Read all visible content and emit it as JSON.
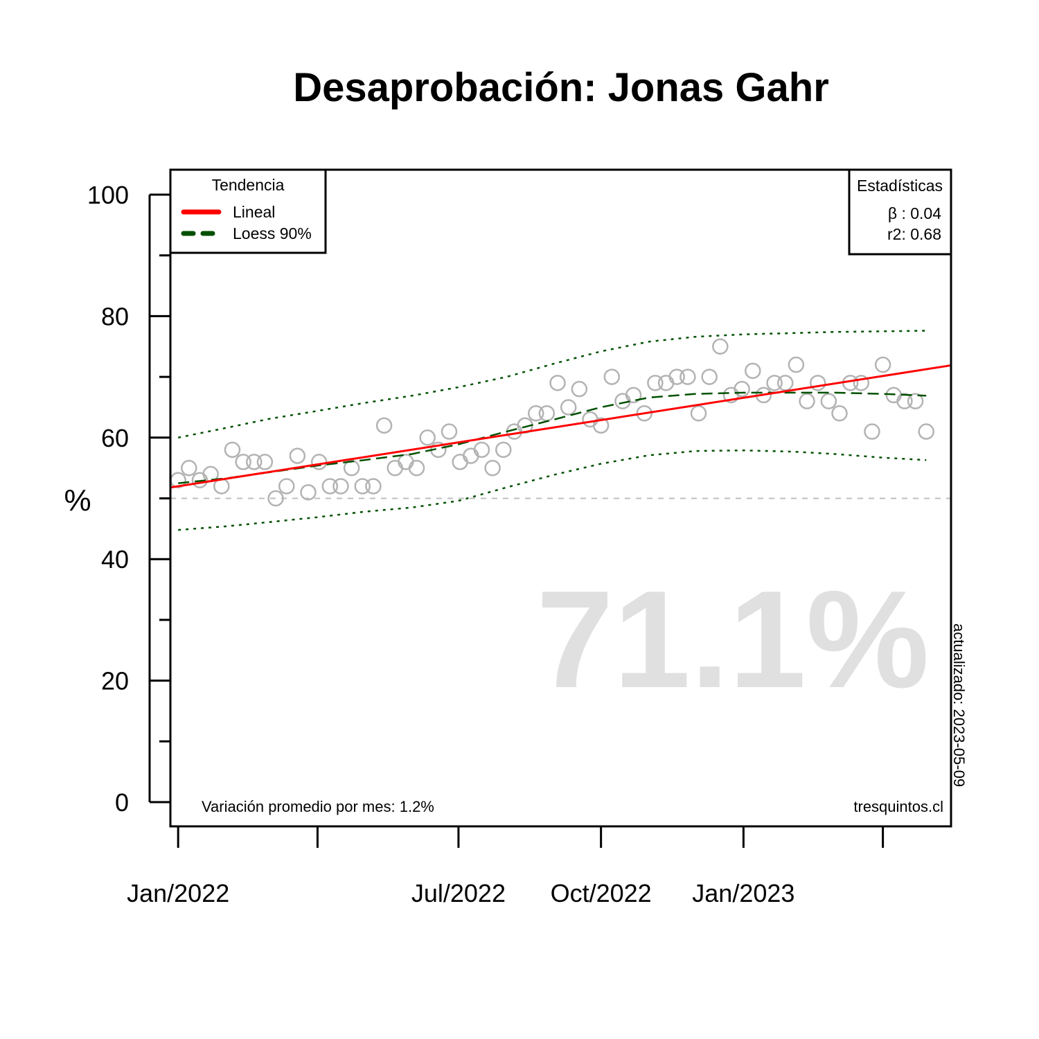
{
  "chart_data": {
    "type": "scatter",
    "title": "Desaprobación: Jonas Gahr",
    "ylabel": "%",
    "xlabel": "",
    "ylim": [
      0,
      100
    ],
    "y_ticks": [
      0,
      20,
      40,
      60,
      80,
      100
    ],
    "y_minor_ticks": [
      10,
      30,
      50,
      70,
      90
    ],
    "x_range": [
      "2021-12-27",
      "2023-05-15"
    ],
    "x_ticks": [
      {
        "date": "2022-01-01",
        "label": "Jan/2022"
      },
      {
        "date": "2022-04-01",
        "label": ""
      },
      {
        "date": "2022-07-01",
        "label": "Jul/2022"
      },
      {
        "date": "2022-10-01",
        "label": "Oct/2022"
      },
      {
        "date": "2023-01-01",
        "label": "Jan/2023"
      },
      {
        "date": "2023-04-01",
        "label": ""
      }
    ],
    "reference_line": 50,
    "colors": {
      "points": "#b3b3b3",
      "linear": "#ff0000",
      "loess": "#005000",
      "reference": "#bebebe",
      "big_value": "#e0e0e0"
    },
    "series": [
      {
        "name": "points",
        "points": [
          {
            "x": "2022-01-01",
            "y": 53
          },
          {
            "x": "2022-01-08",
            "y": 55
          },
          {
            "x": "2022-01-15",
            "y": 53
          },
          {
            "x": "2022-01-22",
            "y": 54
          },
          {
            "x": "2022-01-29",
            "y": 52
          },
          {
            "x": "2022-02-05",
            "y": 58
          },
          {
            "x": "2022-02-12",
            "y": 56
          },
          {
            "x": "2022-02-19",
            "y": 56
          },
          {
            "x": "2022-02-26",
            "y": 56
          },
          {
            "x": "2022-03-05",
            "y": 50
          },
          {
            "x": "2022-03-12",
            "y": 52
          },
          {
            "x": "2022-03-19",
            "y": 57
          },
          {
            "x": "2022-03-26",
            "y": 51
          },
          {
            "x": "2022-04-02",
            "y": 56
          },
          {
            "x": "2022-04-09",
            "y": 52
          },
          {
            "x": "2022-04-16",
            "y": 52
          },
          {
            "x": "2022-04-23",
            "y": 55
          },
          {
            "x": "2022-04-30",
            "y": 52
          },
          {
            "x": "2022-05-07",
            "y": 52
          },
          {
            "x": "2022-05-14",
            "y": 62
          },
          {
            "x": "2022-05-21",
            "y": 55
          },
          {
            "x": "2022-05-28",
            "y": 56
          },
          {
            "x": "2022-06-04",
            "y": 55
          },
          {
            "x": "2022-06-11",
            "y": 60
          },
          {
            "x": "2022-06-18",
            "y": 58
          },
          {
            "x": "2022-06-25",
            "y": 61
          },
          {
            "x": "2022-07-02",
            "y": 56
          },
          {
            "x": "2022-07-09",
            "y": 57
          },
          {
            "x": "2022-07-16",
            "y": 58
          },
          {
            "x": "2022-07-23",
            "y": 55
          },
          {
            "x": "2022-07-30",
            "y": 58
          },
          {
            "x": "2022-08-06",
            "y": 61
          },
          {
            "x": "2022-08-13",
            "y": 62
          },
          {
            "x": "2022-08-20",
            "y": 64
          },
          {
            "x": "2022-08-27",
            "y": 64
          },
          {
            "x": "2022-09-03",
            "y": 69
          },
          {
            "x": "2022-09-10",
            "y": 65
          },
          {
            "x": "2022-09-17",
            "y": 68
          },
          {
            "x": "2022-09-24",
            "y": 63
          },
          {
            "x": "2022-10-01",
            "y": 62
          },
          {
            "x": "2022-10-08",
            "y": 70
          },
          {
            "x": "2022-10-15",
            "y": 66
          },
          {
            "x": "2022-10-22",
            "y": 67
          },
          {
            "x": "2022-10-29",
            "y": 64
          },
          {
            "x": "2022-11-05",
            "y": 69
          },
          {
            "x": "2022-11-12",
            "y": 69
          },
          {
            "x": "2022-11-19",
            "y": 70
          },
          {
            "x": "2022-11-26",
            "y": 70
          },
          {
            "x": "2022-12-03",
            "y": 64
          },
          {
            "x": "2022-12-10",
            "y": 70
          },
          {
            "x": "2022-12-17",
            "y": 75
          },
          {
            "x": "2022-12-24",
            "y": 67
          },
          {
            "x": "2022-12-31",
            "y": 68
          },
          {
            "x": "2023-01-07",
            "y": 71
          },
          {
            "x": "2023-01-14",
            "y": 67
          },
          {
            "x": "2023-01-21",
            "y": 69
          },
          {
            "x": "2023-01-28",
            "y": 69
          },
          {
            "x": "2023-02-04",
            "y": 72
          },
          {
            "x": "2023-02-11",
            "y": 66
          },
          {
            "x": "2023-02-18",
            "y": 69
          },
          {
            "x": "2023-02-25",
            "y": 66
          },
          {
            "x": "2023-03-04",
            "y": 64
          },
          {
            "x": "2023-03-11",
            "y": 69
          },
          {
            "x": "2023-03-18",
            "y": 69
          },
          {
            "x": "2023-03-25",
            "y": 61
          },
          {
            "x": "2023-04-01",
            "y": 72
          },
          {
            "x": "2023-04-08",
            "y": 67
          },
          {
            "x": "2023-04-15",
            "y": 66
          },
          {
            "x": "2023-04-22",
            "y": 66
          },
          {
            "x": "2023-04-29",
            "y": 61
          }
        ]
      },
      {
        "name": "Lineal",
        "points": [
          {
            "x": "2021-12-27",
            "y": 51.8
          },
          {
            "x": "2023-05-15",
            "y": 71.9
          }
        ]
      },
      {
        "name": "Loess 90%",
        "points": [
          {
            "x": "2022-01-01",
            "y": 52.5
          },
          {
            "x": "2022-02-01",
            "y": 53.3
          },
          {
            "x": "2022-03-01",
            "y": 54.3
          },
          {
            "x": "2022-04-01",
            "y": 55.4
          },
          {
            "x": "2022-05-01",
            "y": 56.3
          },
          {
            "x": "2022-06-01",
            "y": 57.3
          },
          {
            "x": "2022-07-01",
            "y": 58.9
          },
          {
            "x": "2022-08-01",
            "y": 61.0
          },
          {
            "x": "2022-09-01",
            "y": 63.0
          },
          {
            "x": "2022-10-01",
            "y": 65.0
          },
          {
            "x": "2022-11-01",
            "y": 66.6
          },
          {
            "x": "2022-12-01",
            "y": 67.2
          },
          {
            "x": "2023-01-01",
            "y": 67.4
          },
          {
            "x": "2023-02-01",
            "y": 67.4
          },
          {
            "x": "2023-03-01",
            "y": 67.4
          },
          {
            "x": "2023-04-01",
            "y": 67.2
          },
          {
            "x": "2023-04-29",
            "y": 66.9
          }
        ],
        "upper": [
          60.0,
          61.6,
          63.1,
          64.4,
          65.7,
          66.9,
          68.3,
          70.0,
          72.2,
          74.2,
          75.8,
          76.6,
          77.0,
          77.2,
          77.4,
          77.5,
          77.6
        ],
        "lower": [
          44.8,
          45.4,
          46.1,
          46.9,
          47.8,
          48.5,
          49.6,
          51.8,
          53.9,
          55.7,
          57.1,
          57.8,
          57.9,
          57.7,
          57.3,
          56.7,
          56.3
        ]
      }
    ],
    "big_value": "71.1%",
    "legend": {
      "title": "Tendencia",
      "items": [
        "Lineal",
        "Loess 90%"
      ],
      "position": "top-left"
    },
    "stats": {
      "title": "Estadísticas",
      "beta": "β : 0.04",
      "r2": "r2: 0.68",
      "position": "top-right"
    },
    "footer_left": "Variación promedio por mes: 1.2%",
    "footer_right": "tresquintos.cl",
    "updated": "actualizado: 2023-05-09"
  }
}
